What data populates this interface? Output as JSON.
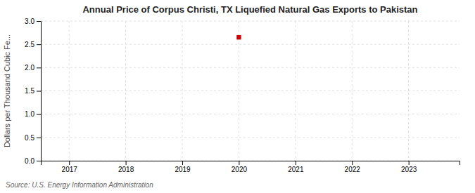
{
  "chart_data": {
    "type": "scatter",
    "title": "Annual Price of Corpus Christi, TX Liquefied Natural Gas Exports to Pakistan",
    "ylabel": "Dollars per Thousand Cubic Fe...",
    "annotations": [
      "Source: U.S. Energy Information Administration"
    ],
    "x": [
      2020
    ],
    "values": [
      2.65
    ],
    "color": "#cc0000",
    "marker": "square",
    "xlim": [
      2016.5,
      2023.9
    ],
    "ylim": [
      0.0,
      3.0
    ],
    "xticks": [
      2017,
      2018,
      2019,
      2020,
      2021,
      2022,
      2023
    ],
    "yticks": [
      {
        "value": 0.0,
        "label": "0.0"
      },
      0.5,
      {
        "value": 1.0,
        "label": "1.0"
      },
      1.5,
      {
        "value": 2.0,
        "label": "2.0"
      },
      2.5,
      {
        "value": 3.0,
        "label": "3.0"
      }
    ],
    "grid": true
  }
}
